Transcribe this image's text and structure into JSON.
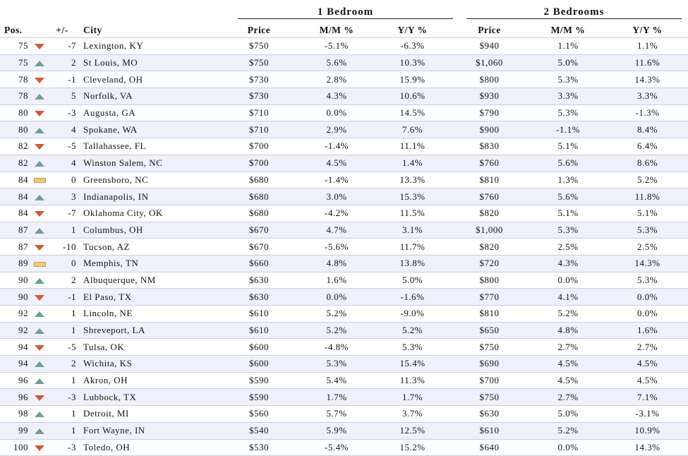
{
  "headers": {
    "group1": "1 Bedroom",
    "group2": "2 Bedrooms",
    "pos": "Pos.",
    "change": "+/-",
    "city": "City",
    "price1": "Price",
    "mm1": "M/M %",
    "yy1": "Y/Y %",
    "price2": "Price",
    "mm2": "M/M %",
    "yy2": "Y/Y %"
  },
  "icon_names": {
    "up": "up-triangle-icon",
    "down": "down-triangle-icon",
    "flat": "flat-bar-icon"
  },
  "colors": {
    "up": "#6f9f93",
    "down": "#d0583a",
    "flat": "#f2c879",
    "row_alt": "#eef0fb"
  },
  "rows": [
    {
      "pos": "75",
      "trend": "down",
      "change": "-7",
      "city": "Lexington, KY",
      "price1": "$750",
      "mm1": "-5.1%",
      "yy1": "-6.3%",
      "price2": "$940",
      "mm2": "1.1%",
      "yy2": "1.1%"
    },
    {
      "pos": "75",
      "trend": "up",
      "change": "2",
      "city": "St Louis, MO",
      "price1": "$750",
      "mm1": "5.6%",
      "yy1": "10.3%",
      "price2": "$1,060",
      "mm2": "5.0%",
      "yy2": "11.6%"
    },
    {
      "pos": "78",
      "trend": "down",
      "change": "-1",
      "city": "Cleveland, OH",
      "price1": "$730",
      "mm1": "2.8%",
      "yy1": "15.9%",
      "price2": "$800",
      "mm2": "5.3%",
      "yy2": "14.3%"
    },
    {
      "pos": "78",
      "trend": "up",
      "change": "5",
      "city": "Norfolk, VA",
      "price1": "$730",
      "mm1": "4.3%",
      "yy1": "10.6%",
      "price2": "$930",
      "mm2": "3.3%",
      "yy2": "3.3%"
    },
    {
      "pos": "80",
      "trend": "down",
      "change": "-3",
      "city": "Augusta, GA",
      "price1": "$710",
      "mm1": "0.0%",
      "yy1": "14.5%",
      "price2": "$790",
      "mm2": "5.3%",
      "yy2": "-1.3%"
    },
    {
      "pos": "80",
      "trend": "up",
      "change": "4",
      "city": "Spokane, WA",
      "price1": "$710",
      "mm1": "2.9%",
      "yy1": "7.6%",
      "price2": "$900",
      "mm2": "-1.1%",
      "yy2": "8.4%"
    },
    {
      "pos": "82",
      "trend": "down",
      "change": "-5",
      "city": "Tallahassee, FL",
      "price1": "$700",
      "mm1": "-1.4%",
      "yy1": "11.1%",
      "price2": "$830",
      "mm2": "5.1%",
      "yy2": "6.4%"
    },
    {
      "pos": "82",
      "trend": "up",
      "change": "4",
      "city": "Winston Salem, NC",
      "price1": "$700",
      "mm1": "4.5%",
      "yy1": "1.4%",
      "price2": "$760",
      "mm2": "5.6%",
      "yy2": "8.6%"
    },
    {
      "pos": "84",
      "trend": "flat",
      "change": "0",
      "city": "Greensboro, NC",
      "price1": "$680",
      "mm1": "-1.4%",
      "yy1": "13.3%",
      "price2": "$810",
      "mm2": "1.3%",
      "yy2": "5.2%"
    },
    {
      "pos": "84",
      "trend": "up",
      "change": "3",
      "city": "Indianapolis, IN",
      "price1": "$680",
      "mm1": "3.0%",
      "yy1": "15.3%",
      "price2": "$760",
      "mm2": "5.6%",
      "yy2": "11.8%"
    },
    {
      "pos": "84",
      "trend": "down",
      "change": "-7",
      "city": "Oklahoma City, OK",
      "price1": "$680",
      "mm1": "-4.2%",
      "yy1": "11.5%",
      "price2": "$820",
      "mm2": "5.1%",
      "yy2": "5.1%"
    },
    {
      "pos": "87",
      "trend": "up",
      "change": "1",
      "city": "Columbus, OH",
      "price1": "$670",
      "mm1": "4.7%",
      "yy1": "3.1%",
      "price2": "$1,000",
      "mm2": "5.3%",
      "yy2": "5.3%"
    },
    {
      "pos": "87",
      "trend": "down",
      "change": "-10",
      "city": "Tucson, AZ",
      "price1": "$670",
      "mm1": "-5.6%",
      "yy1": "11.7%",
      "price2": "$820",
      "mm2": "2.5%",
      "yy2": "2.5%"
    },
    {
      "pos": "89",
      "trend": "flat",
      "change": "0",
      "city": "Memphis, TN",
      "price1": "$660",
      "mm1": "4.8%",
      "yy1": "13.8%",
      "price2": "$720",
      "mm2": "4.3%",
      "yy2": "14.3%"
    },
    {
      "pos": "90",
      "trend": "up",
      "change": "2",
      "city": "Albuquerque, NM",
      "price1": "$630",
      "mm1": "1.6%",
      "yy1": "5.0%",
      "price2": "$800",
      "mm2": "0.0%",
      "yy2": "5.3%"
    },
    {
      "pos": "90",
      "trend": "down",
      "change": "-1",
      "city": "El Paso, TX",
      "price1": "$630",
      "mm1": "0.0%",
      "yy1": "-1.6%",
      "price2": "$770",
      "mm2": "4.1%",
      "yy2": "0.0%"
    },
    {
      "pos": "92",
      "trend": "up",
      "change": "1",
      "city": "Lincoln, NE",
      "price1": "$610",
      "mm1": "5.2%",
      "yy1": "-9.0%",
      "price2": "$810",
      "mm2": "5.2%",
      "yy2": "0.0%"
    },
    {
      "pos": "92",
      "trend": "up",
      "change": "1",
      "city": "Shreveport, LA",
      "price1": "$610",
      "mm1": "5.2%",
      "yy1": "5.2%",
      "price2": "$650",
      "mm2": "4.8%",
      "yy2": "1.6%"
    },
    {
      "pos": "94",
      "trend": "down",
      "change": "-5",
      "city": "Tulsa, OK",
      "price1": "$600",
      "mm1": "-4.8%",
      "yy1": "5.3%",
      "price2": "$750",
      "mm2": "2.7%",
      "yy2": "2.7%"
    },
    {
      "pos": "94",
      "trend": "up",
      "change": "2",
      "city": "Wichita, KS",
      "price1": "$600",
      "mm1": "5.3%",
      "yy1": "15.4%",
      "price2": "$690",
      "mm2": "4.5%",
      "yy2": "4.5%"
    },
    {
      "pos": "96",
      "trend": "up",
      "change": "1",
      "city": "Akron, OH",
      "price1": "$590",
      "mm1": "5.4%",
      "yy1": "11.3%",
      "price2": "$700",
      "mm2": "4.5%",
      "yy2": "4.5%"
    },
    {
      "pos": "96",
      "trend": "down",
      "change": "-3",
      "city": "Lubbock, TX",
      "price1": "$590",
      "mm1": "1.7%",
      "yy1": "1.7%",
      "price2": "$750",
      "mm2": "2.7%",
      "yy2": "7.1%"
    },
    {
      "pos": "98",
      "trend": "up",
      "change": "1",
      "city": "Detroit, MI",
      "price1": "$560",
      "mm1": "5.7%",
      "yy1": "3.7%",
      "price2": "$630",
      "mm2": "5.0%",
      "yy2": "-3.1%"
    },
    {
      "pos": "99",
      "trend": "up",
      "change": "1",
      "city": "Fort Wayne, IN",
      "price1": "$540",
      "mm1": "5.9%",
      "yy1": "12.5%",
      "price2": "$610",
      "mm2": "5.2%",
      "yy2": "10.9%"
    },
    {
      "pos": "100",
      "trend": "down",
      "change": "-3",
      "city": "Toledo, OH",
      "price1": "$530",
      "mm1": "-5.4%",
      "yy1": "15.2%",
      "price2": "$640",
      "mm2": "0.0%",
      "yy2": "14.3%"
    }
  ]
}
